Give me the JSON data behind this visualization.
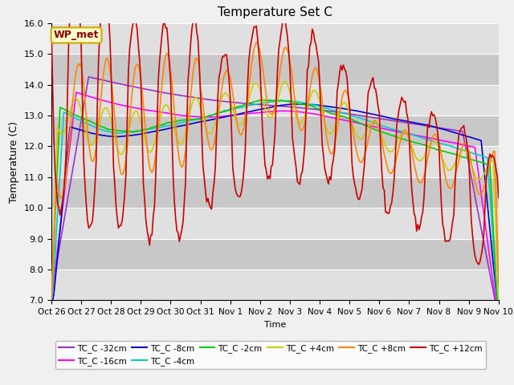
{
  "title": "Temperature Set C",
  "xlabel": "Time",
  "ylabel": "Temperature (C)",
  "ylim": [
    7.0,
    16.0
  ],
  "yticks": [
    7.0,
    8.0,
    9.0,
    10.0,
    11.0,
    12.0,
    13.0,
    14.0,
    15.0,
    16.0
  ],
  "xtick_labels": [
    "Oct 26",
    "Oct 27",
    "Oct 28",
    "Oct 29",
    "Oct 30",
    "Oct 31",
    "Nov 1",
    "Nov 2",
    "Nov 3",
    "Nov 4",
    "Nov 5",
    "Nov 6",
    "Nov 7",
    "Nov 8",
    "Nov 9",
    "Nov 10"
  ],
  "wp_met_label": "WP_met",
  "series_colors": {
    "TC_C -32cm": "#9933cc",
    "TC_C -16cm": "#ff00ff",
    "TC_C -8cm": "#0000cc",
    "TC_C -4cm": "#00cccc",
    "TC_C -2cm": "#00cc00",
    "TC_C +4cm": "#cccc00",
    "TC_C +8cm": "#ff8800",
    "TC_C +12cm": "#cc0000"
  },
  "fig_bg": "#f0f0f0",
  "ax_bg": "#d8d8d8",
  "stripe_light": "#e0e0e0",
  "stripe_dark": "#c8c8c8"
}
